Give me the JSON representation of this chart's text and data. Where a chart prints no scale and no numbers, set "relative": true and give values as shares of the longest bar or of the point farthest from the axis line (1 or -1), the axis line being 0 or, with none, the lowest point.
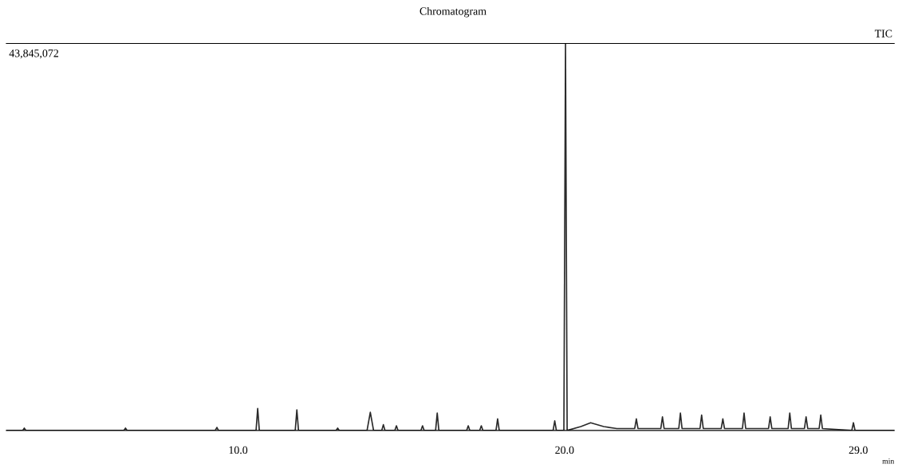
{
  "chart_data": {
    "type": "line",
    "title": "Chromatogram",
    "xlabel": "min",
    "relative": true,
    "annotations": [
      "43,845,072",
      "TIC"
    ],
    "xlim": [
      2.9,
      30.1
    ],
    "xticks": [
      {
        "value": 10,
        "label": "10.0"
      },
      {
        "value": 20,
        "label": "20.0"
      },
      {
        "value": 29,
        "label": "29.0"
      }
    ],
    "grid": false,
    "legend": false,
    "marker": "none",
    "line_style": "solid",
    "series": [
      {
        "color": "#2a2a2a",
        "x": [
          2.9,
          3.4,
          3.45,
          3.5,
          6.5,
          6.55,
          6.6,
          9.3,
          9.35,
          9.4,
          10.55,
          10.6,
          10.65,
          11.75,
          11.8,
          11.85,
          13.0,
          13.05,
          13.1,
          13.95,
          14.05,
          14.15,
          14.4,
          14.45,
          14.5,
          14.8,
          14.85,
          14.9,
          15.6,
          15.65,
          15.7,
          16.05,
          16.1,
          16.15,
          17.0,
          17.05,
          17.1,
          17.4,
          17.45,
          17.5,
          17.9,
          17.95,
          18.0,
          19.65,
          19.7,
          19.75,
          19.98,
          20.03,
          20.08,
          20.5,
          20.8,
          21.2,
          21.6,
          22.15,
          22.2,
          22.25,
          22.95,
          23.0,
          23.05,
          23.5,
          23.55,
          23.6,
          24.15,
          24.2,
          24.25,
          24.8,
          24.85,
          24.9,
          25.45,
          25.5,
          25.55,
          26.25,
          26.3,
          26.35,
          26.85,
          26.9,
          26.95,
          27.35,
          27.4,
          27.45,
          27.8,
          27.85,
          27.9,
          28.8,
          28.85,
          28.9,
          30.1
        ],
        "values": [
          0.0,
          0.0,
          0.006,
          0.0,
          0.0,
          0.006,
          0.0,
          0.0,
          0.008,
          0.0,
          0.0,
          0.057,
          0.0,
          0.0,
          0.053,
          0.0,
          0.0,
          0.006,
          0.0,
          0.0,
          0.047,
          0.0,
          0.0,
          0.015,
          0.0,
          0.0,
          0.012,
          0.0,
          0.0,
          0.012,
          0.0,
          0.0,
          0.045,
          0.0,
          0.0,
          0.012,
          0.0,
          0.0,
          0.012,
          0.0,
          0.0,
          0.03,
          0.0,
          0.0,
          0.025,
          0.0,
          0.0,
          1.0,
          0.0,
          0.01,
          0.02,
          0.01,
          0.005,
          0.005,
          0.03,
          0.005,
          0.005,
          0.035,
          0.005,
          0.005,
          0.045,
          0.005,
          0.005,
          0.04,
          0.005,
          0.005,
          0.03,
          0.005,
          0.005,
          0.045,
          0.005,
          0.005,
          0.035,
          0.005,
          0.005,
          0.045,
          0.005,
          0.005,
          0.035,
          0.005,
          0.005,
          0.04,
          0.005,
          0.0,
          0.02,
          0.0,
          0.0
        ]
      }
    ]
  }
}
